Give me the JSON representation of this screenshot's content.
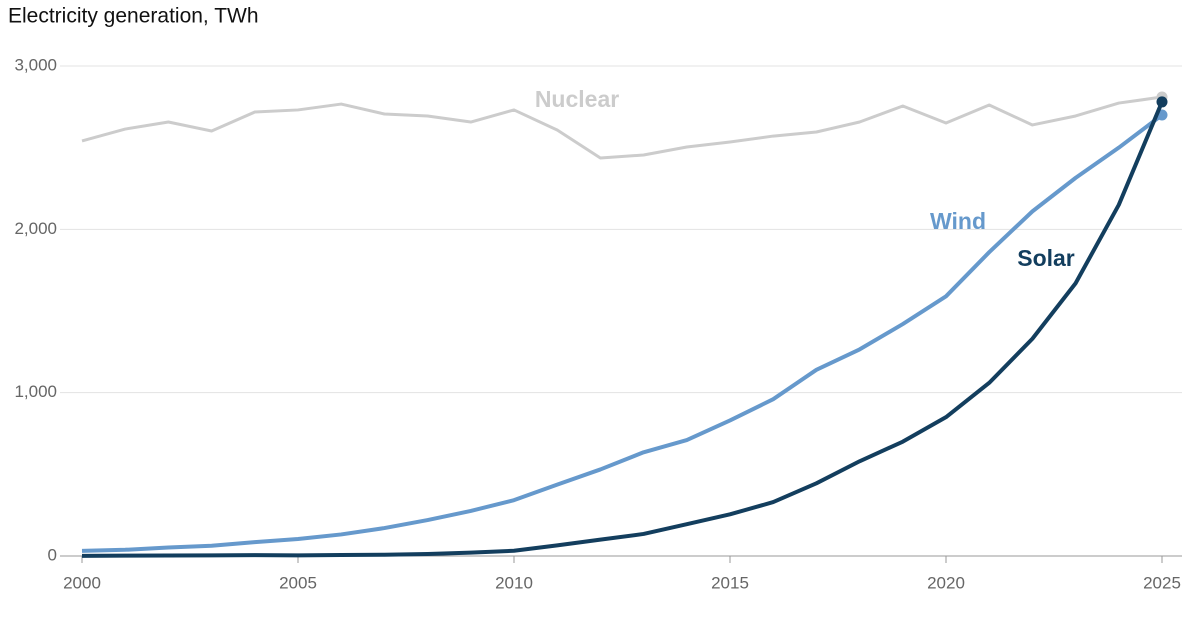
{
  "chart_data": {
    "type": "line",
    "title": "Electricity generation, TWh",
    "x": [
      2000,
      2001,
      2002,
      2003,
      2004,
      2005,
      2006,
      2007,
      2008,
      2009,
      2010,
      2011,
      2012,
      2013,
      2014,
      2015,
      2016,
      2017,
      2018,
      2019,
      2020,
      2021,
      2022,
      2023,
      2024,
      2025
    ],
    "series": [
      {
        "name": "Nuclear",
        "color": "#cccccc",
        "values": [
          2541,
          2614,
          2657,
          2602,
          2718,
          2731,
          2767,
          2706,
          2694,
          2657,
          2731,
          2608,
          2437,
          2455,
          2504,
          2535,
          2571,
          2596,
          2657,
          2755,
          2651,
          2761,
          2639,
          2694,
          2773,
          2810
        ]
      },
      {
        "name": "Wind",
        "color": "#6699cc",
        "values": [
          31,
          38,
          52,
          63,
          85,
          104,
          132,
          171,
          220,
          276,
          342,
          437,
          530,
          635,
          710,
          830,
          960,
          1140,
          1265,
          1420,
          1590,
          1860,
          2110,
          2315,
          2500,
          2700
        ]
      },
      {
        "name": "Solar",
        "color": "#133e5e",
        "values": [
          1,
          2,
          3,
          4,
          5,
          4,
          6,
          8,
          12,
          21,
          32,
          65,
          100,
          135,
          195,
          255,
          330,
          445,
          580,
          700,
          850,
          1060,
          1330,
          1670,
          2150,
          2780
        ]
      }
    ],
    "xlim": [
      2000,
      2025
    ],
    "xticks": [
      2000,
      2005,
      2010,
      2015,
      2020,
      2025
    ],
    "ylim": [
      0,
      3000
    ],
    "yticks": [
      0,
      {
        "value": 1000,
        "label": "1,000"
      },
      {
        "value": 2000,
        "label": "2,000"
      },
      {
        "value": 3000,
        "label": "3,000"
      }
    ],
    "grid": true
  }
}
